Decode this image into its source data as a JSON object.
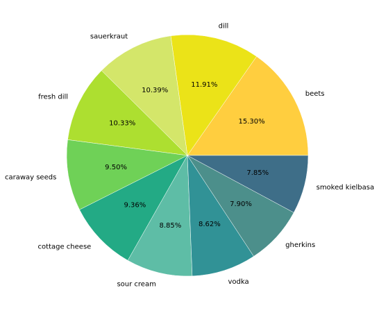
{
  "chart_data": {
    "type": "pie",
    "title": "",
    "slices": [
      {
        "label": "beets",
        "value": 15.3,
        "pct_label": "15.30%",
        "color": "#ffce3f"
      },
      {
        "label": "dill",
        "value": 11.91,
        "pct_label": "11.91%",
        "color": "#ebe318"
      },
      {
        "label": "sauerkraut",
        "value": 10.39,
        "pct_label": "10.39%",
        "color": "#d4e66a"
      },
      {
        "label": "fresh dill",
        "value": 10.33,
        "pct_label": "10.33%",
        "color": "#addf30"
      },
      {
        "label": "caraway seeds",
        "value": 9.5,
        "pct_label": "9.50%",
        "color": "#6fd157"
      },
      {
        "label": "cottage cheese",
        "value": 9.36,
        "pct_label": "9.36%",
        "color": "#23aa85"
      },
      {
        "label": "sour cream",
        "value": 8.85,
        "pct_label": "8.85%",
        "color": "#5ebda6"
      },
      {
        "label": "vodka",
        "value": 8.62,
        "pct_label": "8.62%",
        "color": "#319296"
      },
      {
        "label": "gherkins",
        "value": 7.9,
        "pct_label": "7.90%",
        "color": "#4c8f8b"
      },
      {
        "label": "smoked kielbasa",
        "value": 7.85,
        "pct_label": "7.85%",
        "color": "#3e6e88"
      }
    ],
    "start_angle_deg": 0,
    "direction": "counterclockwise",
    "legend": "none"
  }
}
